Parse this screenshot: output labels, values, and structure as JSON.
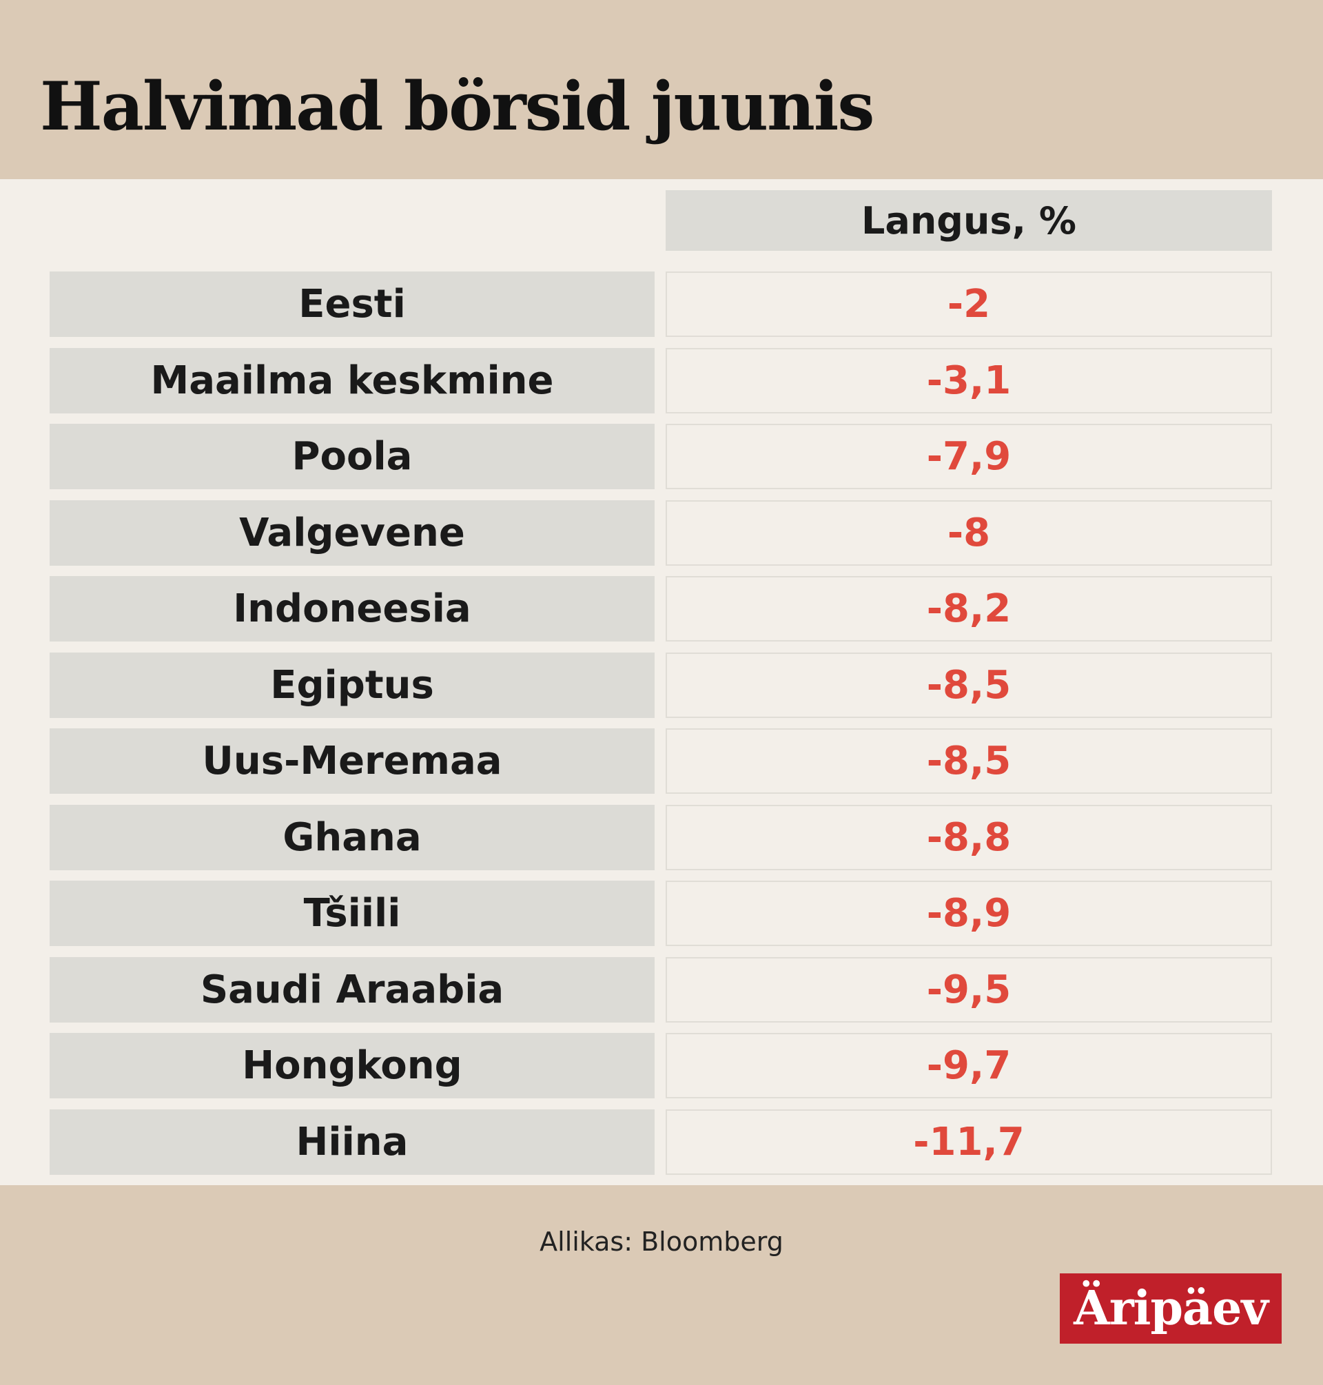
{
  "chart_data": {
    "type": "table",
    "title": "Halvimad börsid juunis",
    "column_header": "Langus, %",
    "rows": [
      {
        "label": "Eesti",
        "value": "-2"
      },
      {
        "label": "Maailma keskmine",
        "value": "-3,1"
      },
      {
        "label": "Poola",
        "value": "-7,9"
      },
      {
        "label": "Valgevene",
        "value": "-8"
      },
      {
        "label": "Indoneesia",
        "value": "-8,2"
      },
      {
        "label": "Egiptus",
        "value": "-8,5"
      },
      {
        "label": "Uus-Meremaa",
        "value": "-8,5"
      },
      {
        "label": "Ghana",
        "value": "-8,8"
      },
      {
        "label": "Tšiili",
        "value": "-8,9"
      },
      {
        "label": "Saudi Araabia",
        "value": "-9,5"
      },
      {
        "label": "Hongkong",
        "value": "-9,7"
      },
      {
        "label": "Hiina",
        "value": "-11,7"
      }
    ],
    "source": "Allikas: Bloomberg"
  },
  "branding": {
    "logo_text": "Äripäev",
    "logo_color": "#c0202a"
  },
  "colors": {
    "header_bg": "#dbcab6",
    "body_bg": "#f3efe9",
    "label_cell_bg": "#dcdbd6",
    "value_text": "#e0493c"
  }
}
